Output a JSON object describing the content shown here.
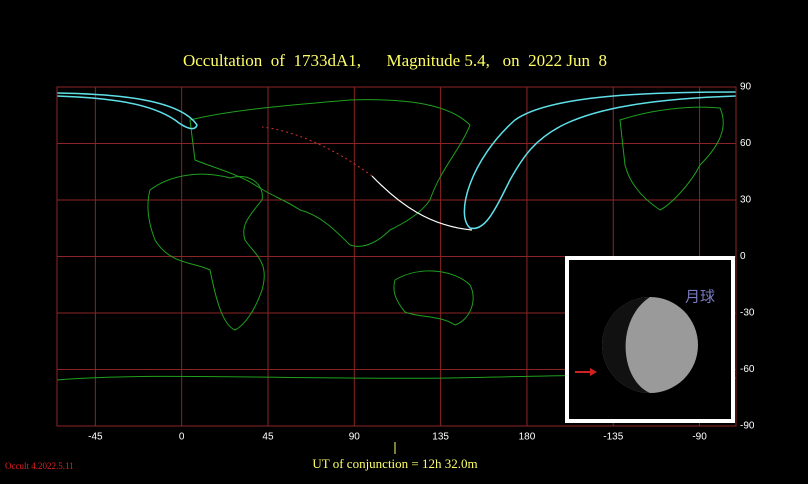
{
  "title": "Occultation  of  1733dA1,      Magnitude 5.4,   on  2022 Jun  8",
  "map": {
    "lon_range": [
      -65,
      289
    ],
    "lat_range": [
      -90,
      90
    ],
    "lon_ticks": [
      -45,
      0,
      45,
      90,
      135,
      180,
      {
        "value": 225,
        "label": "-135"
      },
      {
        "value": 270,
        "label": "-90"
      }
    ],
    "lat_ticks": [
      90,
      60,
      30,
      0,
      -30,
      -60,
      -90
    ]
  },
  "inset": {
    "label": "月球"
  },
  "footer": {
    "conjunction": "UT of conjunction = 12h 32.0m",
    "version": "Occult 4.2022.5.11"
  }
}
